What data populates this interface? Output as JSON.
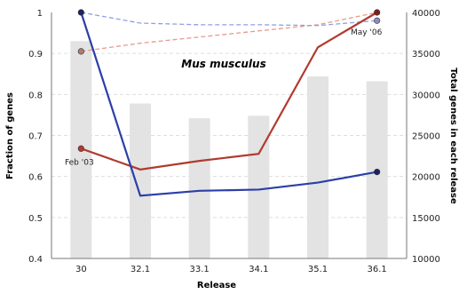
{
  "chart_data": {
    "type": "bar",
    "title": "Mus musculus",
    "xlabel": "Release",
    "ylabel": "Fraction of genes",
    "y2label": "Total genes in each release",
    "categories": [
      "30",
      "32.1",
      "33.1",
      "34.1",
      "35.1",
      "36.1"
    ],
    "ylim": [
      0.4,
      1.0
    ],
    "y_ticks": [
      "0.4",
      "0.5",
      "0.6",
      "0.7",
      "0.8",
      "0.9",
      "1"
    ],
    "y2lim": [
      10000,
      40000
    ],
    "y2_ticks": [
      "10000",
      "15000",
      "20000",
      "25000",
      "30000",
      "35000",
      "40000"
    ],
    "grid": true,
    "bars": {
      "axis": "right",
      "values": [
        36500,
        28900,
        27100,
        27400,
        32200,
        31600
      ],
      "color": "#e3e3e3"
    },
    "series": [
      {
        "style": "solid",
        "color": "#b03a2e",
        "values": [
          0.668,
          0.617,
          0.638,
          0.655,
          0.915,
          1.0
        ]
      },
      {
        "style": "solid",
        "color": "#2b3fa8",
        "values": [
          1.0,
          0.553,
          0.565,
          0.568,
          0.585,
          0.611
        ]
      },
      {
        "style": "dashed",
        "color": "#e89a8c",
        "values": [
          0.905,
          0.925,
          0.94,
          0.955,
          0.97,
          1.0
        ]
      },
      {
        "style": "dashed",
        "color": "#8ea0e0",
        "values": [
          1.0,
          0.974,
          0.97,
          0.97,
          0.968,
          0.98
        ]
      }
    ],
    "annotations": [
      {
        "text": "Feb '03",
        "category": "30",
        "value": 0.668
      },
      {
        "text": "May '06",
        "category": "36.1",
        "value": 0.98
      }
    ]
  }
}
